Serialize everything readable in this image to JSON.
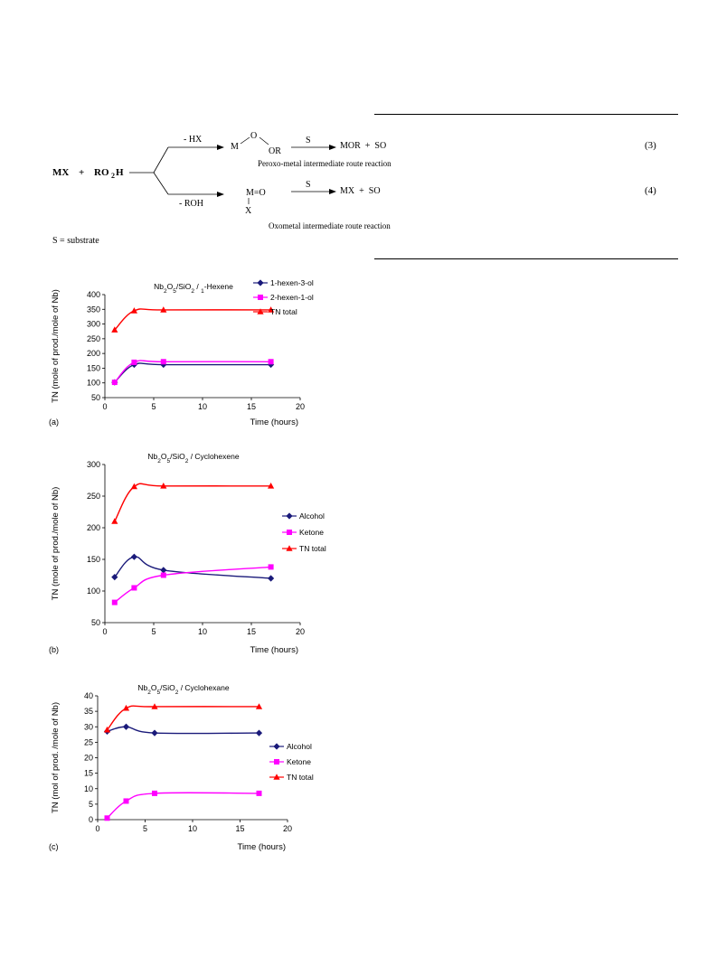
{
  "scheme": {
    "left_mx": "MX",
    "left_plus": "+",
    "left_ro": "RO",
    "left_ro_sub": "2",
    "left_h": "H",
    "branch_top_label": "- HX",
    "branch_bottom_label": "- ROH",
    "peroxo_m": "M",
    "peroxo_o": "O",
    "peroxo_or": "OR",
    "oxo_m": "M=O",
    "oxo_x": "X",
    "s_top": "S",
    "s_bottom": "S",
    "prod_top": "MOR  +  SO",
    "prod_bottom": "MX  +  SO",
    "eq3": "(3)",
    "eq4": "(4)",
    "route_top": "Peroxo-metal intermediate route reaction",
    "route_bottom": "Oxometal intermediate route reaction",
    "footnote": "S = substrate"
  },
  "chart_data": [
    {
      "type": "line",
      "panel": "(a)",
      "title": "Nb2O5/SiO2 / 1-Hexene",
      "xlabel": "Time (hours)",
      "ylabel": "TN (mole of prod./mole of Nb)",
      "xlim": [
        0,
        20
      ],
      "ylim": [
        50,
        400
      ],
      "xticks": [
        0,
        5,
        10,
        15,
        20
      ],
      "yticks": [
        50,
        100,
        150,
        200,
        250,
        300,
        350,
        400
      ],
      "legend_position": "top-right",
      "series": [
        {
          "name": "1-hexen-3-ol",
          "color": "#1a1a7a",
          "marker": "diamond",
          "x": [
            1,
            3,
            6,
            17
          ],
          "y": [
            102,
            162,
            162,
            162
          ]
        },
        {
          "name": "2-hexen-1-ol",
          "color": "#ff00ff",
          "marker": "square",
          "x": [
            1,
            3,
            6,
            17
          ],
          "y": [
            102,
            170,
            172,
            172
          ]
        },
        {
          "name": "TN total",
          "color": "#ff0000",
          "marker": "triangle",
          "x": [
            1,
            3,
            6,
            17
          ],
          "y": [
            280,
            345,
            348,
            348
          ]
        }
      ]
    },
    {
      "type": "line",
      "panel": "(b)",
      "title": "Nb2O5/SiO2 / Cyclohexene",
      "xlabel": "Time (hours)",
      "ylabel": "TN (mole of prod./mole of Nb)",
      "xlim": [
        0,
        20
      ],
      "ylim": [
        50,
        300
      ],
      "xticks": [
        0,
        5,
        10,
        15,
        20
      ],
      "yticks": [
        50,
        100,
        150,
        200,
        250,
        300
      ],
      "legend_position": "right",
      "series": [
        {
          "name": "Alcohol",
          "color": "#1a1a7a",
          "marker": "diamond",
          "x": [
            1,
            3,
            6,
            17
          ],
          "y": [
            122,
            154,
            133,
            120
          ]
        },
        {
          "name": "Ketone",
          "color": "#ff00ff",
          "marker": "square",
          "x": [
            1,
            3,
            6,
            17
          ],
          "y": [
            82,
            105,
            125,
            138
          ]
        },
        {
          "name": "TN total",
          "color": "#ff0000",
          "marker": "triangle",
          "x": [
            1,
            3,
            6,
            17
          ],
          "y": [
            210,
            265,
            266,
            266
          ]
        }
      ]
    },
    {
      "type": "line",
      "panel": "(c)",
      "title": "Nb2O5/SiO2 / Cyclohexane",
      "xlabel": "Time (hours)",
      "ylabel": "TN (mol of prod. /mole of Nb)",
      "xlim": [
        0,
        20
      ],
      "ylim": [
        0,
        40
      ],
      "xticks": [
        0,
        5,
        10,
        15,
        20
      ],
      "yticks": [
        0,
        5,
        10,
        15,
        20,
        25,
        30,
        35,
        40
      ],
      "legend_position": "right",
      "series": [
        {
          "name": "Alcohol",
          "color": "#1a1a7a",
          "marker": "diamond",
          "x": [
            1,
            3,
            6,
            17
          ],
          "y": [
            28.5,
            30,
            28,
            28
          ]
        },
        {
          "name": "Ketone",
          "color": "#ff00ff",
          "marker": "square",
          "x": [
            1,
            3,
            6,
            17
          ],
          "y": [
            0.5,
            6,
            8.5,
            8.5
          ]
        },
        {
          "name": "TN total",
          "color": "#ff0000",
          "marker": "triangle",
          "x": [
            1,
            3,
            6,
            17
          ],
          "y": [
            29,
            36,
            36.5,
            36.5
          ]
        }
      ]
    }
  ]
}
